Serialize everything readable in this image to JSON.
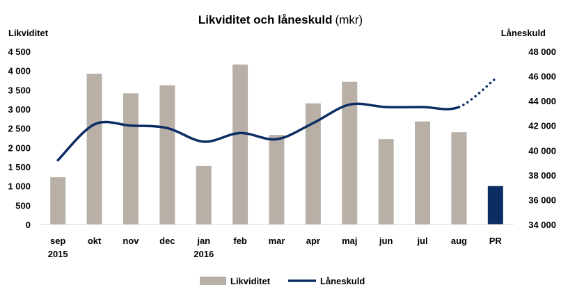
{
  "chart_data": {
    "type": "bar+line",
    "title": "Likviditet och låneskuld",
    "title_unit": "(mkr)",
    "left_axis": {
      "label": "Likviditet",
      "ylim": [
        0,
        4500
      ],
      "ticks": [
        0,
        500,
        1000,
        1500,
        2000,
        2500,
        3000,
        3500,
        4000,
        4500
      ],
      "tick_labels": [
        "0",
        "500",
        "1 000",
        "1 500",
        "2 000",
        "2 500",
        "3 000",
        "3 500",
        "4 000",
        "4 500"
      ]
    },
    "right_axis": {
      "label": "Låneskuld",
      "ylim": [
        34000,
        48000
      ],
      "ticks": [
        34000,
        36000,
        38000,
        40000,
        42000,
        44000,
        46000,
        48000
      ],
      "tick_labels": [
        "34 000",
        "36 000",
        "38 000",
        "40 000",
        "42 000",
        "44 000",
        "46 000",
        "48 000"
      ]
    },
    "categories": [
      "sep",
      "okt",
      "nov",
      "dec",
      "jan",
      "feb",
      "mar",
      "apr",
      "maj",
      "jun",
      "jul",
      "aug",
      "PR"
    ],
    "category_sublabels": [
      "2015",
      "",
      "",
      "",
      "2016",
      "",
      "",
      "",
      "",
      "",
      "",
      "",
      ""
    ],
    "series": [
      {
        "name": "Likviditet",
        "type": "bar",
        "axis": "left",
        "values": [
          1230,
          3920,
          3410,
          3620,
          1520,
          4160,
          2330,
          3150,
          3710,
          2220,
          2680,
          2400,
          1000
        ],
        "color": "#b8b0a7",
        "highlight_color": "#0b2d63",
        "highlight_index": 12
      },
      {
        "name": "Låneskuld",
        "type": "line",
        "axis": "right",
        "values": [
          39200,
          42100,
          42000,
          41800,
          40700,
          41400,
          40900,
          42200,
          43700,
          43500,
          43500,
          43500,
          45800
        ],
        "dotted_from_index": 11,
        "color": "#0b2d63"
      }
    ],
    "legend": {
      "placement": "bottom"
    },
    "grid": false
  }
}
